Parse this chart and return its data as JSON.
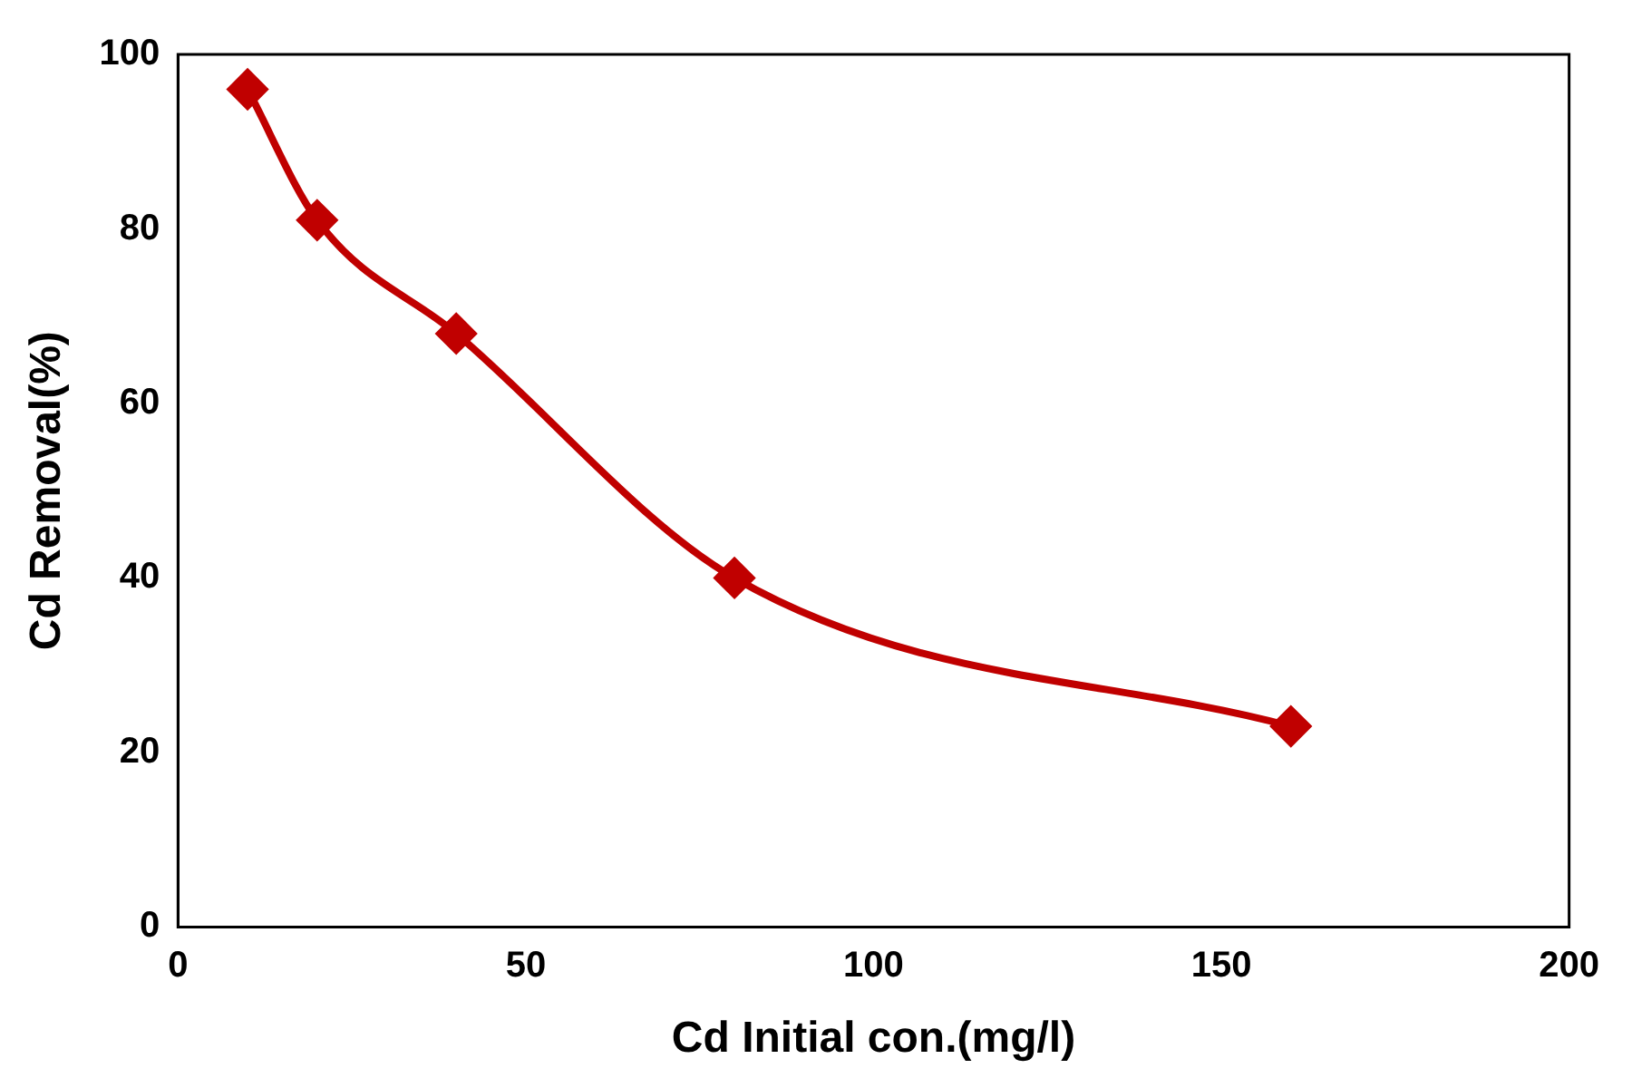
{
  "chart_data": {
    "type": "line",
    "xlabel": "Cd Initial con.(mg/l)",
    "ylabel": "Cd Removal(%)",
    "x": [
      10,
      20,
      40,
      80,
      160
    ],
    "series": [
      {
        "color": "#c00000",
        "values": [
          96,
          81,
          68,
          40,
          23
        ]
      }
    ],
    "xlim": [
      0,
      200
    ],
    "xticks": [
      0,
      50,
      100,
      150,
      200
    ],
    "ylim": [
      0,
      100
    ],
    "yticks": [
      0,
      20,
      40,
      60,
      80,
      100
    ],
    "grid": false,
    "legend": false,
    "marker": "diamond",
    "line_style": "solid"
  }
}
